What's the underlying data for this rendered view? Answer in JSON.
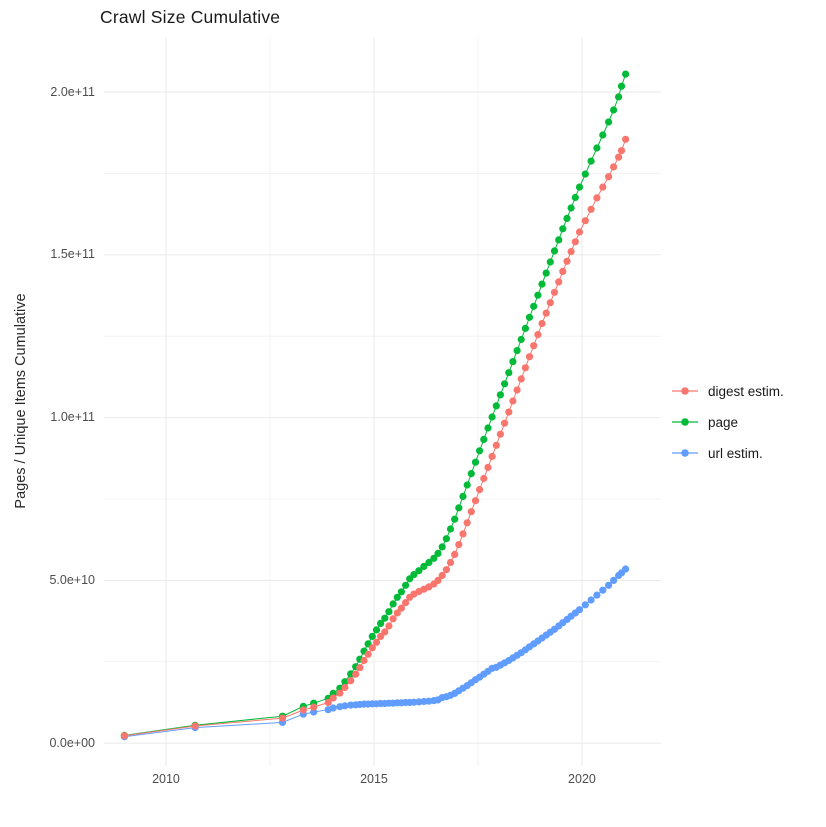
{
  "chart_data": {
    "type": "scatter-line",
    "title": "Crawl Size Cumulative",
    "xlabel": "",
    "ylabel": "Pages / Unique Items Cumulative",
    "value_unit": "billions (1e9 items)",
    "xlim": [
      2008.51,
      2021.9
    ],
    "ylim_e9": [
      -7,
      216.6
    ],
    "x_major_breaks": [
      2010,
      2015,
      2020
    ],
    "x_minor_breaks": [
      2012.5,
      2017.5
    ],
    "x_tick_labels": [
      "2010",
      "2015",
      "2020"
    ],
    "y_major_breaks_e9": [
      0,
      50,
      100,
      150,
      200
    ],
    "y_minor_breaks_e9": [
      25,
      75,
      125,
      175
    ],
    "y_tick_labels": [
      "0.0e+00",
      "5.0e+10",
      "1.0e+11",
      "1.5e+11",
      "2.0e+11"
    ],
    "grid": "major+minor",
    "legend_position": "right",
    "background": "#ffffff",
    "grid_color": "#ebebeb",
    "series": [
      {
        "name": "digest estim.",
        "color": "#F8766D",
        "draw_order": 3,
        "points": [
          [
            2009.0,
            2.3
          ],
          [
            2010.7,
            5.3
          ],
          [
            2012.8,
            7.7
          ],
          [
            2013.3,
            10.2
          ],
          [
            2013.55,
            11.1
          ],
          [
            2013.9,
            12.5
          ],
          [
            2014.02,
            13.9
          ],
          [
            2014.18,
            15.4
          ],
          [
            2014.3,
            17.1
          ],
          [
            2014.44,
            19.2
          ],
          [
            2014.56,
            21.2
          ],
          [
            2014.66,
            23.2
          ],
          [
            2014.76,
            25.4
          ],
          [
            2014.86,
            27.3
          ],
          [
            2014.96,
            29.3
          ],
          [
            2015.06,
            31.0
          ],
          [
            2015.16,
            32.8
          ],
          [
            2015.26,
            34.2
          ],
          [
            2015.36,
            36.0
          ],
          [
            2015.46,
            38.2
          ],
          [
            2015.56,
            40.0
          ],
          [
            2015.66,
            41.5
          ],
          [
            2015.76,
            43.2
          ],
          [
            2015.86,
            44.8
          ],
          [
            2015.96,
            45.8
          ],
          [
            2016.08,
            46.6
          ],
          [
            2016.2,
            47.3
          ],
          [
            2016.32,
            48.0
          ],
          [
            2016.44,
            48.9
          ],
          [
            2016.54,
            50.0
          ],
          [
            2016.64,
            51.5
          ],
          [
            2016.74,
            53.3
          ],
          [
            2016.84,
            55.5
          ],
          [
            2016.94,
            58.0
          ],
          [
            2017.04,
            61.0
          ],
          [
            2017.14,
            64.3
          ],
          [
            2017.24,
            67.7
          ],
          [
            2017.34,
            71.1
          ],
          [
            2017.44,
            74.5
          ],
          [
            2017.54,
            77.9
          ],
          [
            2017.64,
            81.3
          ],
          [
            2017.74,
            84.7
          ],
          [
            2017.84,
            88.1
          ],
          [
            2017.94,
            91.5
          ],
          [
            2018.04,
            94.9
          ],
          [
            2018.14,
            98.3
          ],
          [
            2018.24,
            101.7
          ],
          [
            2018.34,
            105.1
          ],
          [
            2018.44,
            108.5
          ],
          [
            2018.54,
            111.9
          ],
          [
            2018.64,
            115.3
          ],
          [
            2018.74,
            118.7
          ],
          [
            2018.84,
            122.1
          ],
          [
            2018.94,
            125.5
          ],
          [
            2019.04,
            128.9
          ],
          [
            2019.14,
            132.1
          ],
          [
            2019.24,
            135.3
          ],
          [
            2019.34,
            138.5
          ],
          [
            2019.44,
            141.7
          ],
          [
            2019.54,
            144.9
          ],
          [
            2019.64,
            148.0
          ],
          [
            2019.74,
            151.0
          ],
          [
            2019.84,
            154.0
          ],
          [
            2019.94,
            157.0
          ],
          [
            2020.08,
            160.5
          ],
          [
            2020.22,
            164.0
          ],
          [
            2020.36,
            167.5
          ],
          [
            2020.5,
            170.8
          ],
          [
            2020.64,
            174.0
          ],
          [
            2020.76,
            177.0
          ],
          [
            2020.88,
            180.0
          ],
          [
            2020.95,
            182.0
          ],
          [
            2021.05,
            185.5
          ]
        ]
      },
      {
        "name": "page",
        "color": "#00BA38",
        "draw_order": 2,
        "points": [
          [
            2009.0,
            2.4
          ],
          [
            2010.7,
            5.5
          ],
          [
            2012.8,
            8.3
          ],
          [
            2013.3,
            11.3
          ],
          [
            2013.55,
            12.3
          ],
          [
            2013.9,
            13.8
          ],
          [
            2014.02,
            15.3
          ],
          [
            2014.18,
            16.9
          ],
          [
            2014.3,
            18.9
          ],
          [
            2014.44,
            21.3
          ],
          [
            2014.56,
            23.5
          ],
          [
            2014.66,
            25.8
          ],
          [
            2014.76,
            28.3
          ],
          [
            2014.86,
            30.5
          ],
          [
            2014.96,
            32.8
          ],
          [
            2015.06,
            34.8
          ],
          [
            2015.16,
            36.8
          ],
          [
            2015.26,
            38.4
          ],
          [
            2015.36,
            40.4
          ],
          [
            2015.46,
            42.8
          ],
          [
            2015.56,
            44.8
          ],
          [
            2015.66,
            46.5
          ],
          [
            2015.76,
            48.5
          ],
          [
            2015.86,
            50.5
          ],
          [
            2015.96,
            51.8
          ],
          [
            2016.08,
            53.0
          ],
          [
            2016.2,
            54.3
          ],
          [
            2016.32,
            55.5
          ],
          [
            2016.44,
            56.8
          ],
          [
            2016.54,
            58.3
          ],
          [
            2016.64,
            60.3
          ],
          [
            2016.74,
            62.8
          ],
          [
            2016.84,
            65.8
          ],
          [
            2016.94,
            68.8
          ],
          [
            2017.04,
            72.3
          ],
          [
            2017.14,
            75.8
          ],
          [
            2017.24,
            79.3
          ],
          [
            2017.34,
            82.8
          ],
          [
            2017.44,
            86.3
          ],
          [
            2017.54,
            89.8
          ],
          [
            2017.64,
            93.3
          ],
          [
            2017.74,
            96.8
          ],
          [
            2017.84,
            100.2
          ],
          [
            2017.94,
            103.6
          ],
          [
            2018.04,
            107.0
          ],
          [
            2018.14,
            110.4
          ],
          [
            2018.24,
            113.8
          ],
          [
            2018.34,
            117.2
          ],
          [
            2018.44,
            120.6
          ],
          [
            2018.54,
            124.0
          ],
          [
            2018.64,
            127.4
          ],
          [
            2018.74,
            130.8
          ],
          [
            2018.84,
            134.2
          ],
          [
            2018.94,
            137.6
          ],
          [
            2019.04,
            141.0
          ],
          [
            2019.14,
            144.4
          ],
          [
            2019.24,
            147.8
          ],
          [
            2019.34,
            151.2
          ],
          [
            2019.44,
            154.6
          ],
          [
            2019.54,
            158.0
          ],
          [
            2019.64,
            161.2
          ],
          [
            2019.74,
            164.4
          ],
          [
            2019.84,
            167.6
          ],
          [
            2019.94,
            170.8
          ],
          [
            2020.08,
            174.8
          ],
          [
            2020.22,
            178.8
          ],
          [
            2020.36,
            182.8
          ],
          [
            2020.5,
            186.8
          ],
          [
            2020.64,
            190.8
          ],
          [
            2020.76,
            194.5
          ],
          [
            2020.88,
            198.5
          ],
          [
            2020.95,
            201.8
          ],
          [
            2021.05,
            205.5
          ]
        ]
      },
      {
        "name": "url estim.",
        "color": "#619CFF",
        "draw_order": 1,
        "points": [
          [
            2009.0,
            2.0
          ],
          [
            2010.7,
            4.8
          ],
          [
            2012.8,
            6.4
          ],
          [
            2013.3,
            8.9
          ],
          [
            2013.55,
            9.6
          ],
          [
            2013.9,
            10.3
          ],
          [
            2014.02,
            10.8
          ],
          [
            2014.18,
            11.2
          ],
          [
            2014.3,
            11.5
          ],
          [
            2014.44,
            11.7
          ],
          [
            2014.56,
            11.8
          ],
          [
            2014.66,
            11.9
          ],
          [
            2014.76,
            12.0
          ],
          [
            2014.86,
            12.0
          ],
          [
            2014.96,
            12.1
          ],
          [
            2015.06,
            12.1
          ],
          [
            2015.16,
            12.2
          ],
          [
            2015.26,
            12.2
          ],
          [
            2015.36,
            12.3
          ],
          [
            2015.46,
            12.3
          ],
          [
            2015.56,
            12.4
          ],
          [
            2015.66,
            12.4
          ],
          [
            2015.76,
            12.5
          ],
          [
            2015.86,
            12.5
          ],
          [
            2015.96,
            12.6
          ],
          [
            2016.08,
            12.7
          ],
          [
            2016.2,
            12.8
          ],
          [
            2016.32,
            12.9
          ],
          [
            2016.44,
            13.1
          ],
          [
            2016.54,
            13.3
          ],
          [
            2016.64,
            14.0
          ],
          [
            2016.74,
            14.3
          ],
          [
            2016.84,
            14.7
          ],
          [
            2016.94,
            15.3
          ],
          [
            2017.04,
            16.1
          ],
          [
            2017.14,
            16.9
          ],
          [
            2017.24,
            17.7
          ],
          [
            2017.34,
            18.6
          ],
          [
            2017.44,
            19.5
          ],
          [
            2017.54,
            20.3
          ],
          [
            2017.64,
            21.2
          ],
          [
            2017.74,
            22.1
          ],
          [
            2017.84,
            23.0
          ],
          [
            2017.94,
            23.3
          ],
          [
            2018.04,
            24.0
          ],
          [
            2018.14,
            24.7
          ],
          [
            2018.24,
            25.4
          ],
          [
            2018.34,
            26.2
          ],
          [
            2018.44,
            27.0
          ],
          [
            2018.54,
            27.8
          ],
          [
            2018.64,
            28.7
          ],
          [
            2018.74,
            29.6
          ],
          [
            2018.84,
            30.5
          ],
          [
            2018.94,
            31.4
          ],
          [
            2019.04,
            32.3
          ],
          [
            2019.14,
            33.2
          ],
          [
            2019.24,
            34.1
          ],
          [
            2019.34,
            35.0
          ],
          [
            2019.44,
            36.0
          ],
          [
            2019.54,
            37.0
          ],
          [
            2019.64,
            38.0
          ],
          [
            2019.74,
            39.0
          ],
          [
            2019.84,
            40.0
          ],
          [
            2019.94,
            41.0
          ],
          [
            2020.08,
            42.5
          ],
          [
            2020.22,
            44.0
          ],
          [
            2020.36,
            45.5
          ],
          [
            2020.5,
            47.0
          ],
          [
            2020.64,
            48.5
          ],
          [
            2020.76,
            50.0
          ],
          [
            2020.88,
            51.5
          ],
          [
            2020.95,
            52.3
          ],
          [
            2021.05,
            53.5
          ]
        ]
      }
    ]
  }
}
